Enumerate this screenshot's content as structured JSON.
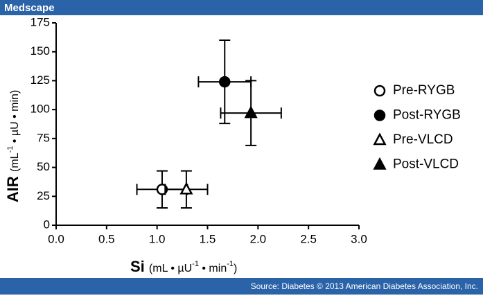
{
  "header": "Medscape",
  "source": "Source: Diabetes © 2013 American Diabetes Association, Inc.",
  "chart_data": {
    "type": "scatter",
    "xlabel": {
      "main": "Si",
      "parts": [
        "(mL • µU",
        "-1",
        " • min",
        "-1",
        ")"
      ]
    },
    "ylabel": {
      "main": "AIR",
      "parts": [
        "(mL",
        "-1",
        " • µU • min)"
      ]
    },
    "xlim": [
      0,
      3
    ],
    "ylim": [
      0,
      175
    ],
    "xticks": [
      {
        "value": 0,
        "label": "0.0"
      },
      {
        "value": 0.5,
        "label": "0.5"
      },
      {
        "value": 1,
        "label": "1.0"
      },
      {
        "value": 1.5,
        "label": "1.5"
      },
      {
        "value": 2,
        "label": "2.0"
      },
      {
        "value": 2.5,
        "label": "2.5"
      },
      {
        "value": 3,
        "label": "3.0"
      }
    ],
    "yticks": [
      0,
      25,
      50,
      75,
      100,
      125,
      150,
      175
    ],
    "series": [
      {
        "name": "Pre-RYGB",
        "color": "#000000",
        "marker": "circle",
        "filled": false,
        "x": [
          1.05
        ],
        "values": [
          31
        ],
        "xerr": [
          0.25
        ],
        "yerr": [
          16
        ]
      },
      {
        "name": "Post-RYGB",
        "color": "#000000",
        "marker": "circle",
        "filled": true,
        "x": [
          1.67
        ],
        "values": [
          124
        ],
        "xerr": [
          0.26
        ],
        "yerr": [
          36
        ]
      },
      {
        "name": "Pre-VLCD",
        "color": "#000000",
        "marker": "triangle",
        "filled": false,
        "x": [
          1.29
        ],
        "values": [
          31
        ],
        "xerr": [
          0.21
        ],
        "yerr": [
          16
        ]
      },
      {
        "name": "Post-VLCD",
        "color": "#000000",
        "marker": "triangle",
        "filled": true,
        "x": [
          1.93
        ],
        "values": [
          97
        ],
        "xerr": [
          0.3
        ],
        "yerr": [
          28
        ]
      }
    ]
  }
}
